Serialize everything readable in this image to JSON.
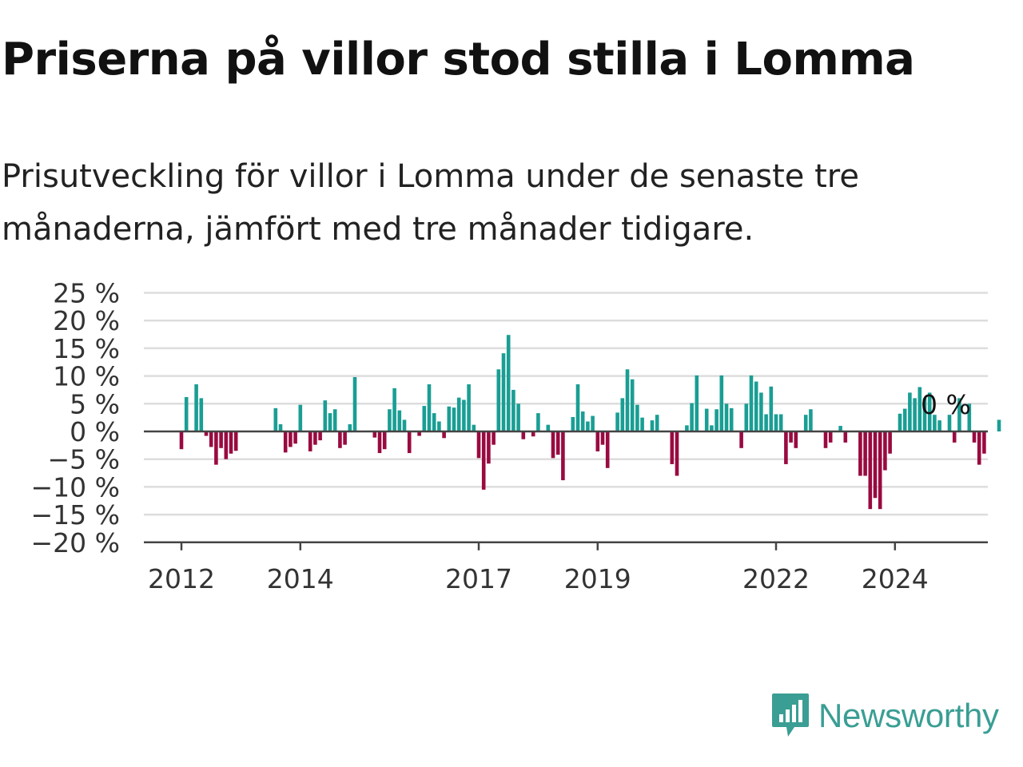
{
  "title": "Priserna på villor stod stilla i Lomma",
  "subtitle": "Prisutveckling för villor i Lomma under de senaste tre månaderna, jämfört med tre månader tidigare.",
  "brand": {
    "name": "Newsworthy",
    "icon": "newsworthy-logo-icon"
  },
  "colors": {
    "positive": "#1a9e94",
    "negative": "#990a40",
    "grid": "#dddddd",
    "axis": "#444444",
    "text": "#222222"
  },
  "chart_data": {
    "type": "bar",
    "ylim": [
      -20,
      25
    ],
    "y_ticks": [
      25,
      20,
      15,
      10,
      5,
      0,
      -5,
      -10,
      -15,
      -20
    ],
    "y_tick_labels": [
      "25 %",
      "20 %",
      "15 %",
      "10 %",
      "5 %",
      "0 %",
      "−5 %",
      "−10 %",
      "−15 %",
      "−20 %"
    ],
    "x_tick_labels": [
      "2012",
      "2014",
      "2017",
      "2019",
      "2022",
      "2024"
    ],
    "x_tick_months": [
      0,
      24,
      60,
      84,
      120,
      144
    ],
    "grid": true,
    "annotation": "0 %",
    "start": "2012-01",
    "values": [
      -3.2,
      6.2,
      0,
      8.5,
      6,
      -0.8,
      -2.8,
      -6,
      -3,
      -5,
      -4,
      -3.5,
      0,
      0,
      0,
      0,
      0,
      0,
      0,
      4.2,
      1.3,
      -3.8,
      -2.8,
      -2.2,
      4.8,
      0,
      -3.6,
      -2.4,
      -1.6,
      5.6,
      3.3,
      4,
      -3,
      -2.4,
      1.3,
      9.8,
      0,
      0,
      0,
      -1.1,
      -3.9,
      -3.2,
      4,
      7.8,
      3.8,
      2.1,
      -3.9,
      0,
      -0.8,
      4.6,
      8.5,
      3.3,
      1.8,
      -1.2,
      4.5,
      4.3,
      6.1,
      5.7,
      8.5,
      1.2,
      -4.8,
      -10.5,
      -5.8,
      -2.4,
      11.2,
      14.1,
      17.4,
      7.5,
      5,
      -1.4,
      0,
      -0.9,
      3.3,
      0,
      1.2,
      -4.8,
      -4.2,
      -8.8,
      0,
      2.6,
      8.5,
      3.6,
      1.8,
      2.8,
      -3.6,
      -2.4,
      -6.6,
      0,
      3.4,
      6,
      11.2,
      9.4,
      4.8,
      2.5,
      0,
      2,
      3,
      0,
      0,
      -5.9,
      -8,
      0,
      1.1,
      5.1,
      10.1,
      0,
      4.1,
      1.1,
      4,
      10.1,
      5,
      4.2,
      0,
      -3,
      5,
      10.1,
      9,
      7,
      3.1,
      8.1,
      3.1,
      3.1,
      -5.9,
      -2,
      -3,
      0,
      3,
      4,
      0,
      0,
      -3,
      -2,
      0,
      1,
      -2,
      0,
      0,
      -8,
      -8,
      -14,
      -12,
      -14,
      -7,
      -4,
      0,
      3.2,
      4.1,
      7,
      6,
      8,
      6,
      7,
      3,
      2,
      0,
      3,
      -2,
      6,
      0,
      5,
      -2,
      -6,
      -4,
      0,
      0,
      2.1
    ]
  }
}
